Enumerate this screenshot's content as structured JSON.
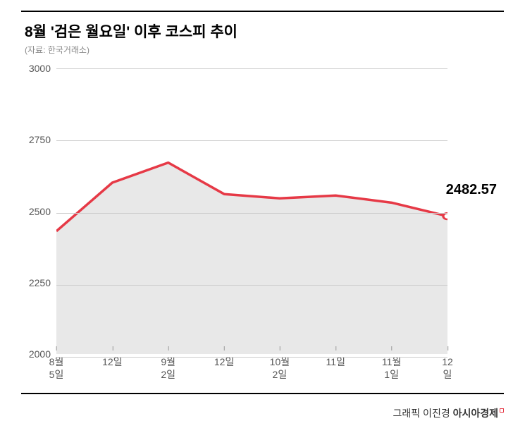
{
  "title": "8월 '검은 월요일' 이후 코스피 추이",
  "subtitle": "(자료: 한국거래소)",
  "title_fontsize": 21,
  "subtitle_fontsize": 12,
  "chart": {
    "type": "area-line",
    "ylim": [
      2000,
      3000
    ],
    "yticks": [
      2000,
      2250,
      2500,
      2750,
      3000
    ],
    "ytick_fontsize": 14,
    "xtick_fontsize": 14,
    "xlabels": [
      "8월\n5일",
      "12일",
      "9월\n2일",
      "12일",
      "10월\n2일",
      "11일",
      "11월\n1일",
      "12일"
    ],
    "xpositions": [
      0,
      14.3,
      28.6,
      42.9,
      57.1,
      71.4,
      85.7,
      100
    ],
    "values": [
      2430,
      2600,
      2670,
      2560,
      2545,
      2555,
      2530,
      2482.57
    ],
    "line_color": "#e63946",
    "line_width": 3.5,
    "fill_color": "#e8e8e8",
    "grid_color": "#cccccc",
    "background_color": "#ffffff",
    "endpoint_marker": {
      "outer_radius": 7,
      "inner_radius": 4,
      "outer_color": "#e63946",
      "inner_color": "#ffffff"
    },
    "value_label": {
      "text": "2482.57",
      "fontsize": 20,
      "color": "#000000"
    }
  },
  "credit": {
    "author": "그래픽 이진경",
    "brand": "아시아경제",
    "fontsize": 14
  }
}
